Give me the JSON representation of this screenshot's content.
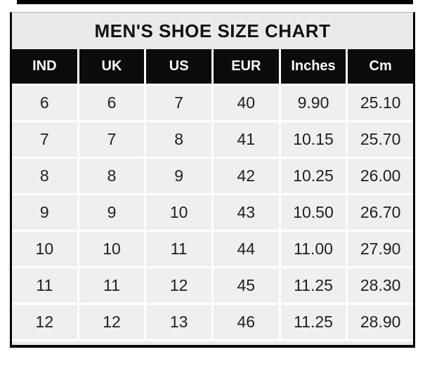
{
  "chart_data": {
    "type": "table",
    "title": "MEN'S SHOE SIZE CHART",
    "columns": [
      "IND",
      "UK",
      "US",
      "EUR",
      "Inches",
      "Cm"
    ],
    "rows": [
      [
        "6",
        "6",
        "7",
        "40",
        "9.90",
        "25.10"
      ],
      [
        "7",
        "7",
        "8",
        "41",
        "10.15",
        "25.70"
      ],
      [
        "8",
        "8",
        "9",
        "42",
        "10.25",
        "26.00"
      ],
      [
        "9",
        "9",
        "10",
        "43",
        "10.50",
        "26.70"
      ],
      [
        "10",
        "10",
        "11",
        "44",
        "11.00",
        "27.90"
      ],
      [
        "11",
        "11",
        "12",
        "45",
        "11.25",
        "28.30"
      ],
      [
        "12",
        "12",
        "13",
        "46",
        "11.25",
        "28.90"
      ]
    ]
  },
  "colors": {
    "page_bg": "#ffffff",
    "title_bg": "#ebeaeb",
    "header_bg": "#0c0a0b",
    "header_text": "#fbfbfb",
    "cell_bg": "#f0eff0",
    "body_text": "#1f1f1f",
    "border": "#000000"
  }
}
